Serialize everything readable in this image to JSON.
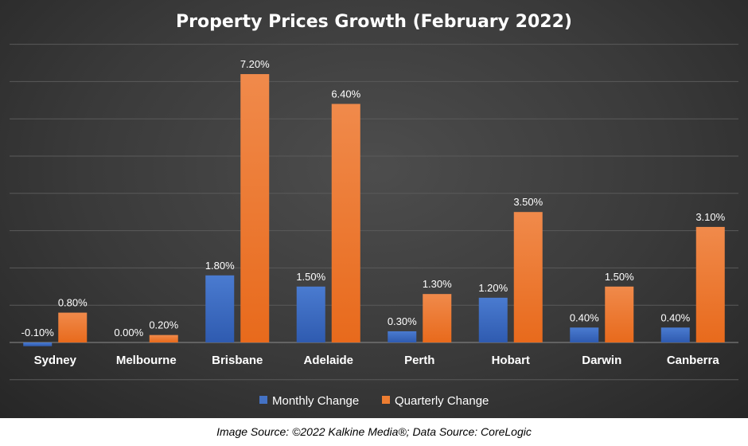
{
  "footer": {
    "source_text": "Image Source: ©2022 Kalkine Media®; Data Source: CoreLogic"
  },
  "chart_data": {
    "type": "bar",
    "title": "Property Prices Growth (February 2022)",
    "categories": [
      "Sydney",
      "Melbourne",
      "Brisbane",
      "Adelaide",
      "Perth",
      "Hobart",
      "Darwin",
      "Canberra"
    ],
    "series": [
      {
        "name": "Monthly Change",
        "color": "#4472c4",
        "values": [
          -0.1,
          0.0,
          1.8,
          1.5,
          0.3,
          1.2,
          0.4,
          0.4
        ],
        "labels": [
          "-0.10%",
          "0.00%",
          "1.80%",
          "1.50%",
          "0.30%",
          "1.20%",
          "0.40%",
          "0.40%"
        ]
      },
      {
        "name": "Quarterly Change",
        "color": "#ed7d31",
        "values": [
          0.8,
          0.2,
          7.2,
          6.4,
          1.3,
          3.5,
          1.5,
          3.1
        ],
        "labels": [
          "0.80%",
          "0.20%",
          "7.20%",
          "6.40%",
          "1.30%",
          "3.50%",
          "1.50%",
          "3.10%"
        ]
      }
    ],
    "ylim": [
      -1,
      8
    ],
    "grid": true,
    "legend_position": "bottom",
    "axis_labels_shown": false
  }
}
